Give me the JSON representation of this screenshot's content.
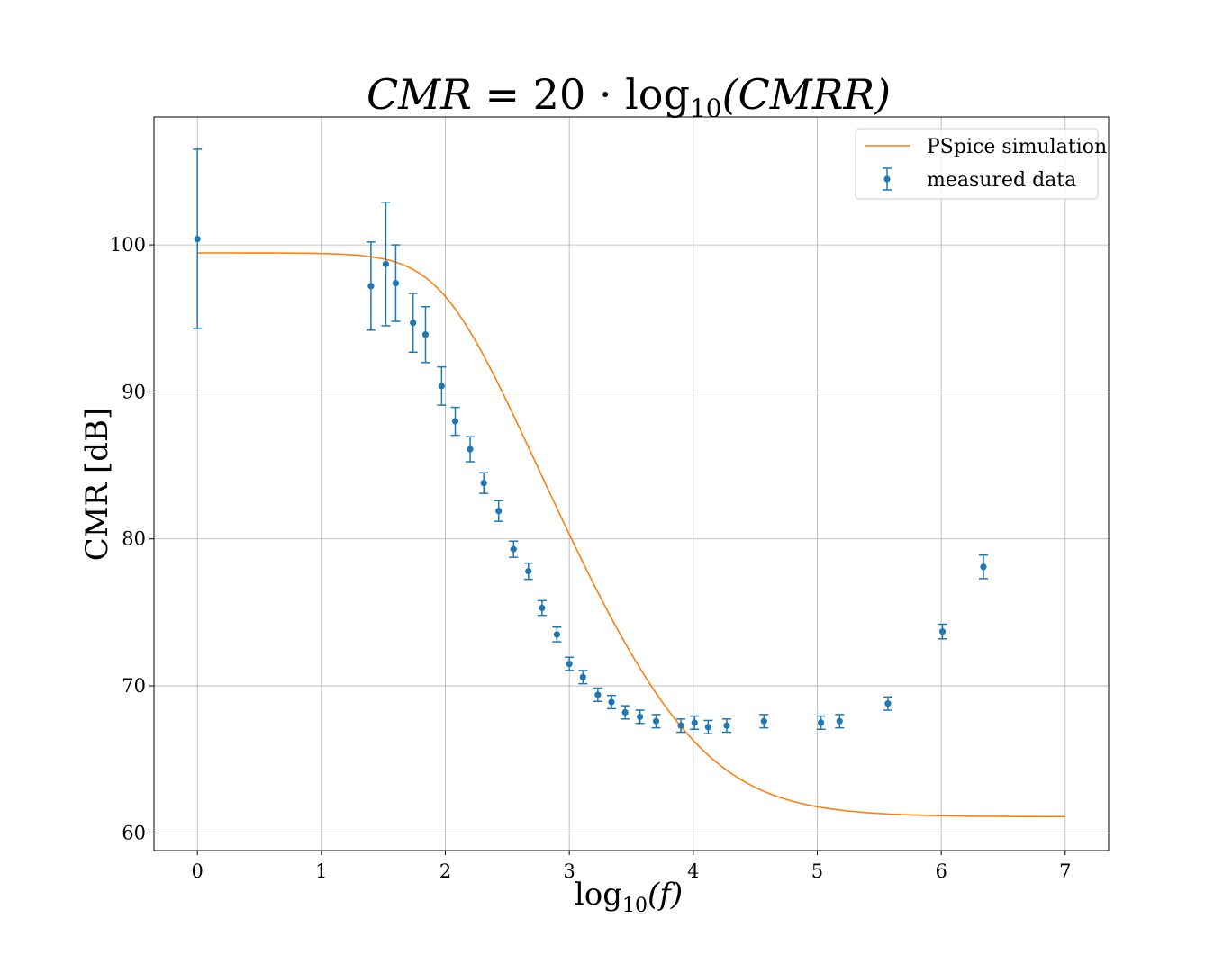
{
  "chart_data": {
    "type": "scatter",
    "title_parts": {
      "lhs": "CMR",
      "eq": " = 20 · log",
      "sub": "10",
      "arg": "(CMRR)"
    },
    "xlabel_parts": {
      "pre": "log",
      "sub": "10",
      "post": "(f)"
    },
    "ylabel": "CMR [dB]",
    "xlim": [
      -0.35,
      7.35
    ],
    "ylim": [
      58.8,
      108.7
    ],
    "xticks": [
      0,
      1,
      2,
      3,
      4,
      5,
      6,
      7
    ],
    "yticks": [
      60,
      70,
      80,
      90,
      100
    ],
    "grid": true,
    "legend_position": "top-right",
    "colors": {
      "measured": "#1f77b4",
      "simulation": "#ff7f0e",
      "grid": "#b0b0b0"
    },
    "series": [
      {
        "name": "PSpice simulation",
        "kind": "line",
        "model": {
          "high": 99.35,
          "low": 61.1,
          "corner_log10_f": 2.0
        }
      },
      {
        "name": "measured data",
        "kind": "errorbar",
        "points": [
          {
            "x": 0.0,
            "y": 100.4,
            "err": 6.1
          },
          {
            "x": 1.4,
            "y": 97.2,
            "err": 3.0
          },
          {
            "x": 1.52,
            "y": 98.7,
            "err": 4.2
          },
          {
            "x": 1.6,
            "y": 97.4,
            "err": 2.6
          },
          {
            "x": 1.74,
            "y": 94.7,
            "err": 2.0
          },
          {
            "x": 1.84,
            "y": 93.9,
            "err": 1.9
          },
          {
            "x": 1.97,
            "y": 90.4,
            "err": 1.3
          },
          {
            "x": 2.08,
            "y": 88.0,
            "err": 0.95
          },
          {
            "x": 2.2,
            "y": 86.1,
            "err": 0.85
          },
          {
            "x": 2.31,
            "y": 83.8,
            "err": 0.7
          },
          {
            "x": 2.43,
            "y": 81.9,
            "err": 0.7
          },
          {
            "x": 2.55,
            "y": 79.3,
            "err": 0.55
          },
          {
            "x": 2.67,
            "y": 77.8,
            "err": 0.55
          },
          {
            "x": 2.78,
            "y": 75.3,
            "err": 0.5
          },
          {
            "x": 2.9,
            "y": 73.5,
            "err": 0.5
          },
          {
            "x": 3.0,
            "y": 71.5,
            "err": 0.45
          },
          {
            "x": 3.11,
            "y": 70.6,
            "err": 0.45
          },
          {
            "x": 3.23,
            "y": 69.4,
            "err": 0.45
          },
          {
            "x": 3.34,
            "y": 68.9,
            "err": 0.45
          },
          {
            "x": 3.45,
            "y": 68.2,
            "err": 0.45
          },
          {
            "x": 3.57,
            "y": 67.9,
            "err": 0.45
          },
          {
            "x": 3.7,
            "y": 67.6,
            "err": 0.45
          },
          {
            "x": 3.9,
            "y": 67.3,
            "err": 0.45
          },
          {
            "x": 4.01,
            "y": 67.5,
            "err": 0.45
          },
          {
            "x": 4.12,
            "y": 67.2,
            "err": 0.45
          },
          {
            "x": 4.27,
            "y": 67.3,
            "err": 0.45
          },
          {
            "x": 4.57,
            "y": 67.6,
            "err": 0.45
          },
          {
            "x": 5.03,
            "y": 67.5,
            "err": 0.45
          },
          {
            "x": 5.18,
            "y": 67.6,
            "err": 0.45
          },
          {
            "x": 5.57,
            "y": 68.8,
            "err": 0.45
          },
          {
            "x": 6.01,
            "y": 73.7,
            "err": 0.5
          },
          {
            "x": 6.34,
            "y": 78.1,
            "err": 0.8
          }
        ]
      }
    ]
  }
}
